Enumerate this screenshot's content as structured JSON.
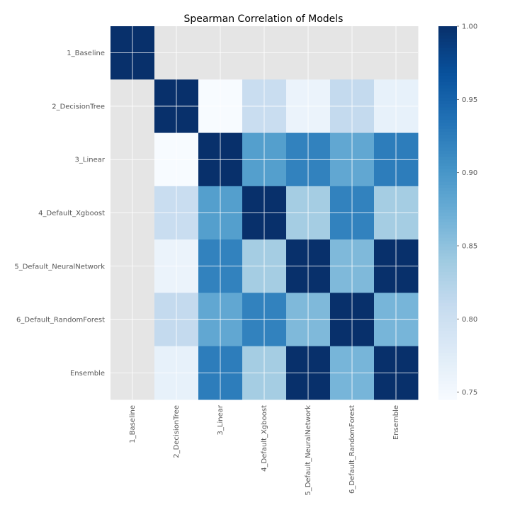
{
  "chart_data": {
    "type": "heatmap",
    "title": "Spearman Correlation of Models",
    "xlabel": "",
    "ylabel": "",
    "rows": [
      "1_Baseline",
      "2_DecisionTree",
      "3_Linear",
      "4_Default_Xgboost",
      "5_Default_NeuralNetwork",
      "6_Default_RandomForest",
      "Ensemble"
    ],
    "columns": [
      "1_Baseline",
      "2_DecisionTree",
      "3_Linear",
      "4_Default_Xgboost",
      "5_Default_NeuralNetwork",
      "6_Default_RandomForest",
      "Ensemble"
    ],
    "values": [
      [
        1.0,
        null,
        null,
        null,
        null,
        null,
        null
      ],
      [
        null,
        1.0,
        0.745,
        0.805,
        0.76,
        0.81,
        0.765
      ],
      [
        null,
        0.745,
        1.0,
        0.89,
        0.92,
        0.88,
        0.925
      ],
      [
        null,
        0.805,
        0.89,
        1.0,
        0.835,
        0.92,
        0.835
      ],
      [
        null,
        0.76,
        0.92,
        0.835,
        1.0,
        0.86,
        1.0
      ],
      [
        null,
        0.81,
        0.88,
        0.92,
        0.86,
        1.0,
        0.865
      ],
      [
        null,
        0.765,
        0.925,
        0.835,
        1.0,
        0.865,
        1.0
      ]
    ],
    "missing_color": "#e5e5e5",
    "colormap": "Blues",
    "vmin": 0.745,
    "vmax": 1.0,
    "colorbar_ticks": [
      "0.75",
      "0.80",
      "0.85",
      "0.90",
      "0.95",
      "1.00"
    ],
    "colorbar_tick_values": [
      0.75,
      0.8,
      0.85,
      0.9,
      0.95,
      1.0
    ],
    "grid": true,
    "grid_color": "#ffffff"
  }
}
